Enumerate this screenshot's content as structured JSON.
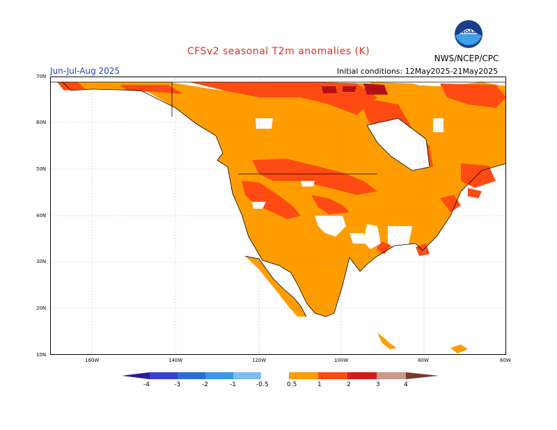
{
  "header": {
    "title": "CFSv2 seasonal T2m anomalies (K)",
    "org": "NWS/NCEP/CPC",
    "season": "Jun-Jul-Aug 2025",
    "initial_conditions": "Initial conditions: 12May2025-21May2025",
    "logo_text": "NOAA"
  },
  "axes": {
    "lat_labels": [
      "70N",
      "60N",
      "50N",
      "40N",
      "30N",
      "20N",
      "10N"
    ],
    "lon_labels": [
      "160W",
      "140W",
      "120W",
      "100W",
      "80W",
      "60W"
    ]
  },
  "colorbar": {
    "labels": [
      "-4",
      "-3",
      "-2",
      "-1",
      "-0.5",
      "0.5",
      "1",
      "2",
      "3",
      "4"
    ],
    "colors": [
      "#2a1a9a",
      "#3a3fd0",
      "#2a6fd6",
      "#3a97e8",
      "#7cbcf2",
      "#ffffff",
      "#ff9d00",
      "#ff4b12",
      "#d41c1c",
      "#9a0a0a",
      "#c99a8a",
      "#7a3a2a"
    ]
  },
  "legend_colors": {
    "anom_05_1": "#ff9d00",
    "anom_1_2": "#ff4b12",
    "anom_2_3": "#d41c1c",
    "anom_3_4": "#9a0a0a"
  }
}
